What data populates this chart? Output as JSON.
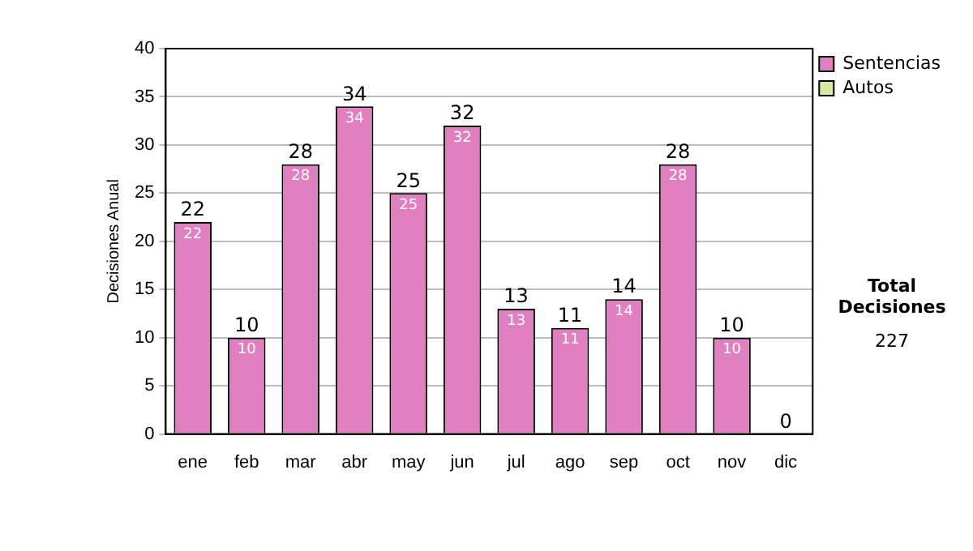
{
  "chart_data": {
    "type": "bar",
    "stacked": true,
    "ylabel": "Decisiones Anual",
    "categories": [
      "ene",
      "feb",
      "mar",
      "abr",
      "may",
      "jun",
      "jul",
      "ago",
      "sep",
      "oct",
      "nov",
      "dic"
    ],
    "series": [
      {
        "name": "Sentencias",
        "color": "#e080c0",
        "values": [
          22,
          10,
          28,
          34,
          25,
          32,
          13,
          11,
          14,
          28,
          10,
          0
        ],
        "value_labels": [
          "22",
          "10",
          "28",
          "34",
          "25",
          "32",
          "13",
          "11",
          "14",
          "28",
          "10",
          null
        ]
      },
      {
        "name": "Autos",
        "color": "#d8e8a0",
        "values": [
          0,
          0,
          0,
          0,
          0,
          0,
          0,
          0,
          0,
          0,
          0,
          0
        ]
      }
    ],
    "totals": [
      "22",
      "10",
      "28",
      "34",
      "25",
      "32",
      "13",
      "11",
      "14",
      "28",
      "10",
      "0"
    ],
    "ylim": [
      0,
      40
    ],
    "yticks": [
      0,
      5,
      10,
      15,
      20,
      25,
      30,
      35,
      40
    ],
    "grid": "y",
    "legend": "right",
    "annotations": [
      "Total Decisiones",
      "227"
    ]
  }
}
